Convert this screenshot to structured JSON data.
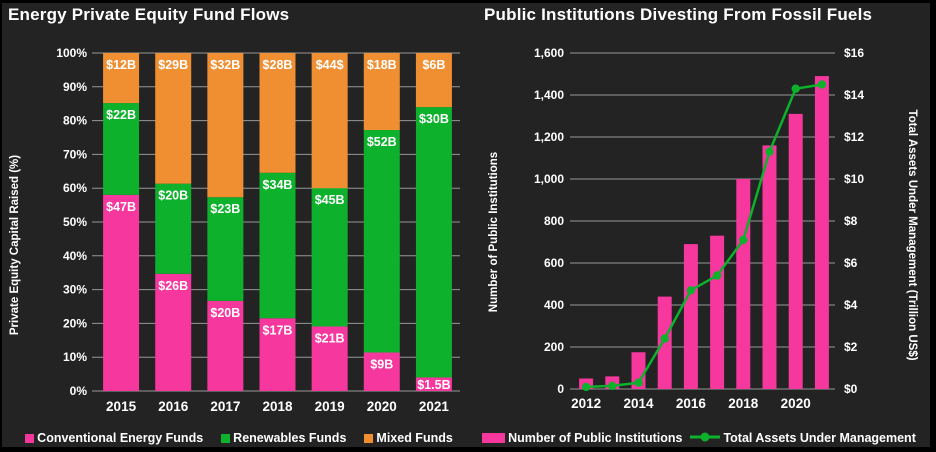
{
  "colors": {
    "pink": "#F5379E",
    "green": "#0DB12C",
    "orange": "#EF8F32",
    "background": "#232323",
    "border": "#000000",
    "grid": "#979797",
    "text": "#FFFFFF"
  },
  "chart_data": [
    {
      "type": "bar",
      "subtype": "stacked-100-percent",
      "title": "Energy Private Equity Fund Flows",
      "ylabel": "Private Equity Capital Raised (%)",
      "ytick_labels": [
        "100%",
        "90%",
        "80%",
        "70%",
        "60%",
        "50%",
        "40%",
        "30%",
        "20%",
        "10%",
        "0%"
      ],
      "ylim": [
        0,
        100
      ],
      "grid": true,
      "categories": [
        "2015",
        "2016",
        "2017",
        "2018",
        "2019",
        "2020",
        "2021"
      ],
      "value_unit": "billion US$",
      "series": [
        {
          "name": "Conventional Energy Funds",
          "color": "pink",
          "values": [
            47,
            26,
            20,
            17,
            21,
            9,
            1.5
          ],
          "labels": [
            "$47B",
            "$26B",
            "$20B",
            "$17B",
            "$21B",
            "$9B",
            "$1.5B"
          ]
        },
        {
          "name": "Renewables Funds",
          "color": "green",
          "values": [
            22,
            20,
            23,
            34,
            45,
            52,
            30
          ],
          "labels": [
            "$22B",
            "$20B",
            "$23B",
            "$34B",
            "$45B",
            "$52B",
            "$30B"
          ]
        },
        {
          "name": "Mixed Funds",
          "color": "orange",
          "values": [
            12,
            29,
            32,
            28,
            44,
            18,
            6
          ],
          "labels": [
            "$12B",
            "$29B",
            "$32B",
            "$28B",
            "$44$",
            "$18B",
            "$6B"
          ]
        }
      ],
      "legend": [
        {
          "label": "Conventional Energy Funds",
          "color": "pink"
        },
        {
          "label": "Renewables Funds",
          "color": "green"
        },
        {
          "label": "Mixed Funds",
          "color": "orange"
        }
      ],
      "legend_position": "bottom"
    },
    {
      "type": "bar",
      "subtype": "bar-plus-line-dual-axis",
      "title": "Public Institutions Divesting From Fossil Fuels",
      "x": [
        "2012",
        "2013",
        "2014",
        "2015",
        "2016",
        "2017",
        "2018",
        "2019",
        "2020",
        "2021"
      ],
      "xtick_labels": [
        "2012",
        "2014",
        "2016",
        "2018",
        "2020"
      ],
      "grid": true,
      "left_axis": {
        "label": "Number of Public Institutions",
        "tick_labels": [
          "1,600",
          "1,400",
          "1,200",
          "1,000",
          "800",
          "600",
          "400",
          "200",
          "0"
        ],
        "min": 0,
        "max": 1600
      },
      "right_axis": {
        "label": "Total Assets Under Management (Trillion US$)",
        "tick_labels": [
          "$16",
          "$14",
          "$12",
          "$10",
          "$8",
          "$6",
          "$4",
          "$2",
          "$0"
        ],
        "min": 0,
        "max": 16
      },
      "series": [
        {
          "kind": "bar",
          "name": "Number of Public Institutions",
          "color": "pink",
          "axis": "left",
          "values": [
            50,
            60,
            175,
            440,
            690,
            730,
            1000,
            1160,
            1310,
            1490
          ]
        },
        {
          "kind": "line",
          "name": "Total Assets Under Management",
          "color": "green",
          "axis": "right",
          "values": [
            0.1,
            0.15,
            0.3,
            2.4,
            4.7,
            5.4,
            7.1,
            11.3,
            14.3,
            14.5
          ]
        }
      ],
      "legend": [
        {
          "label": "Number of Public Institutions",
          "color": "pink",
          "marker": "rect"
        },
        {
          "label": "Total Assets Under Management",
          "color": "green",
          "marker": "line-dot"
        }
      ],
      "legend_position": "bottom"
    }
  ]
}
